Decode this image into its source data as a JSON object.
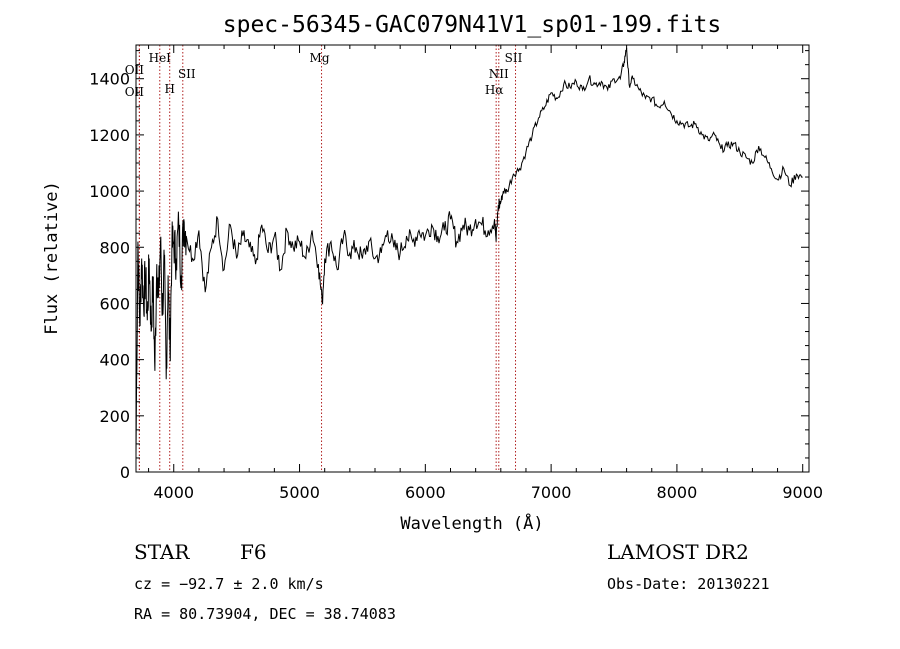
{
  "chart_data": {
    "type": "line",
    "title": "spec-56345-GAC079N41V1_sp01-199.fits",
    "xlabel": "Wavelength (Å)",
    "ylabel": "Flux (relative)",
    "xlim": [
      3700,
      9050
    ],
    "ylim": [
      0,
      1520
    ],
    "x_ticks": [
      4000,
      5000,
      6000,
      7000,
      8000,
      9000
    ],
    "y_ticks": [
      0,
      200,
      400,
      600,
      800,
      1000,
      1200,
      1400
    ],
    "x_tick_labels": [
      "4000",
      "5000",
      "6000",
      "7000",
      "8000",
      "9000"
    ],
    "y_tick_labels": [
      "0",
      "200",
      "400",
      "600",
      "800",
      "1000",
      "1200",
      "1400"
    ],
    "series": [
      {
        "color": "#000000",
        "x": [
          3700,
          3715,
          3730,
          3745,
          3760,
          3775,
          3790,
          3805,
          3820,
          3835,
          3850,
          3865,
          3880,
          3895,
          3910,
          3925,
          3940,
          3955,
          3970,
          3985,
          4000,
          4020,
          4040,
          4060,
          4080,
          4100,
          4150,
          4200,
          4250,
          4300,
          4350,
          4400,
          4450,
          4500,
          4550,
          4600,
          4650,
          4700,
          4750,
          4800,
          4850,
          4900,
          4950,
          5000,
          5050,
          5100,
          5150,
          5180,
          5200,
          5250,
          5300,
          5350,
          5400,
          5450,
          5500,
          5550,
          5600,
          5650,
          5700,
          5750,
          5800,
          5850,
          5900,
          5950,
          6000,
          6050,
          6100,
          6150,
          6200,
          6250,
          6300,
          6350,
          6400,
          6450,
          6500,
          6550,
          6563,
          6580,
          6600,
          6620,
          6650,
          6700,
          6750,
          6800,
          6850,
          6900,
          6950,
          7000,
          7050,
          7100,
          7150,
          7200,
          7250,
          7300,
          7350,
          7400,
          7450,
          7500,
          7550,
          7580,
          7600,
          7620,
          7650,
          7700,
          7750,
          7800,
          7850,
          7900,
          7950,
          8000,
          8050,
          8100,
          8150,
          8200,
          8250,
          8300,
          8350,
          8400,
          8450,
          8500,
          8550,
          8600,
          8650,
          8700,
          8750,
          8800,
          8850,
          8900,
          8950,
          9000
        ],
        "y": [
          60,
          820,
          520,
          760,
          600,
          700,
          540,
          760,
          500,
          680,
          360,
          740,
          620,
          820,
          560,
          760,
          330,
          700,
          420,
          800,
          820,
          760,
          880,
          700,
          900,
          840,
          760,
          860,
          640,
          800,
          900,
          720,
          880,
          760,
          840,
          800,
          740,
          880,
          780,
          840,
          720,
          860,
          800,
          820,
          760,
          860,
          740,
          600,
          760,
          820,
          720,
          840,
          780,
          800,
          760,
          820,
          760,
          780,
          860,
          800,
          780,
          840,
          820,
          860,
          840,
          880,
          840,
          860,
          900,
          820,
          880,
          860,
          900,
          880,
          860,
          900,
          820,
          950,
          960,
          1000,
          1000,
          1060,
          1080,
          1140,
          1200,
          1260,
          1300,
          1350,
          1330,
          1380,
          1370,
          1390,
          1360,
          1400,
          1380,
          1390,
          1360,
          1400,
          1400,
          1460,
          1510,
          1380,
          1400,
          1360,
          1330,
          1330,
          1300,
          1320,
          1280,
          1250,
          1240,
          1230,
          1240,
          1200,
          1180,
          1200,
          1150,
          1160,
          1170,
          1140,
          1120,
          1100,
          1160,
          1120,
          1080,
          1040,
          1080,
          1020,
          1060,
          1050
        ]
      }
    ],
    "spectral_lines": [
      {
        "label": "OII",
        "x": 3727
      },
      {
        "label": "OII",
        "x": 3727
      },
      {
        "label": "HeI",
        "x": 3889
      },
      {
        "label": "H",
        "x": 3968
      },
      {
        "label": "SII",
        "x": 4072
      },
      {
        "label": "Mg",
        "x": 5175
      },
      {
        "label": "NII",
        "x": 6584
      },
      {
        "label": "Hα",
        "x": 6563
      },
      {
        "label": "SII",
        "x": 6717
      }
    ],
    "line_color": "#b02020"
  },
  "info": {
    "object_class": "STAR",
    "subclass": "F6",
    "cz": "cz = −92.7 ± 2.0 km/s",
    "radec": "RA =  80.73904, DEC =  38.74083",
    "survey": "LAMOST DR2",
    "obs_date": "Obs-Date: 20130221"
  }
}
